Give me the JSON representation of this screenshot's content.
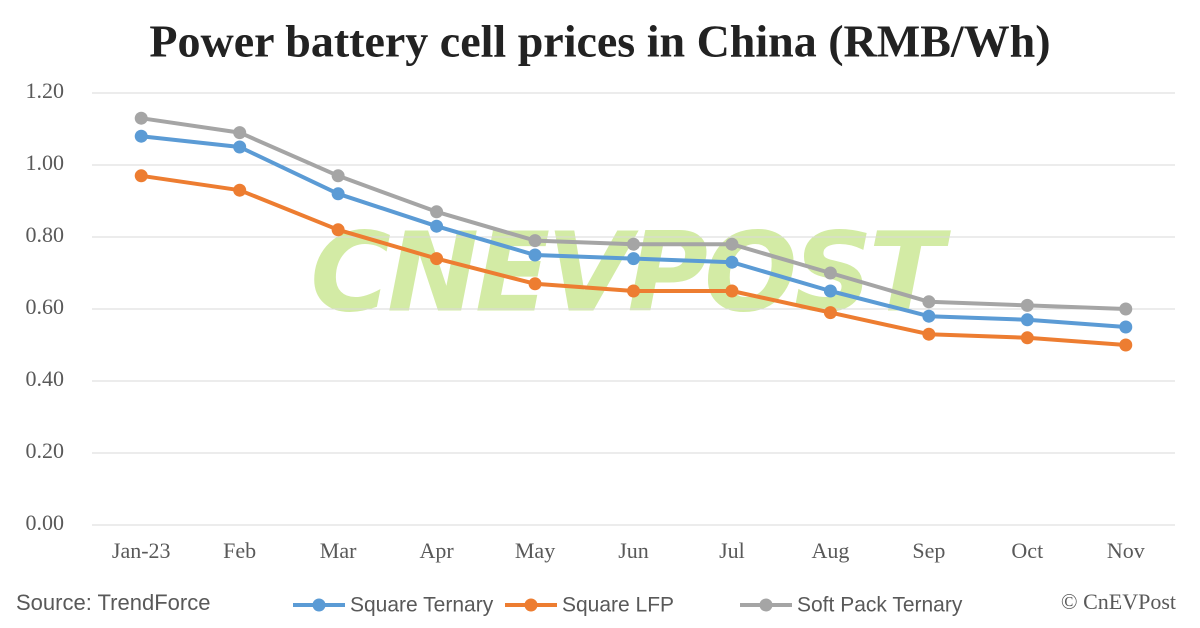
{
  "chart_data": {
    "type": "line",
    "title": "Power battery cell prices in China (RMB/Wh)",
    "categories": [
      "Jan-23",
      "Feb",
      "Mar",
      "Apr",
      "May",
      "Jun",
      "Jul",
      "Aug",
      "Sep",
      "Oct",
      "Nov"
    ],
    "series": [
      {
        "name": "Square Ternary",
        "color": "#5b9bd5",
        "values": [
          1.08,
          1.05,
          0.92,
          0.83,
          0.75,
          0.74,
          0.73,
          0.65,
          0.58,
          0.57,
          0.55
        ]
      },
      {
        "name": "Square LFP",
        "color": "#ed7d31",
        "values": [
          0.97,
          0.93,
          0.82,
          0.74,
          0.67,
          0.65,
          0.65,
          0.59,
          0.53,
          0.52,
          0.5
        ]
      },
      {
        "name": "Soft Pack Ternary",
        "color": "#a5a5a5",
        "values": [
          1.13,
          1.09,
          0.97,
          0.87,
          0.79,
          0.78,
          0.78,
          0.7,
          0.62,
          0.61,
          0.6
        ]
      }
    ],
    "ylim": [
      0,
      1.2
    ],
    "yticks": [
      {
        "value": 0,
        "label": "0.00"
      },
      {
        "value": 0.2,
        "label": "0.20"
      },
      {
        "value": 0.4,
        "label": "0.40"
      },
      {
        "value": 0.6,
        "label": "0.60"
      },
      {
        "value": 0.8,
        "label": "0.80"
      },
      {
        "value": 1.0,
        "label": "1.00"
      },
      {
        "value": 1.2,
        "label": "1.20"
      }
    ],
    "grid": true,
    "legend": "bottom",
    "source": "Source: TrendForce",
    "credit": "© CnEVPost",
    "watermark": "CNEVPOST"
  }
}
